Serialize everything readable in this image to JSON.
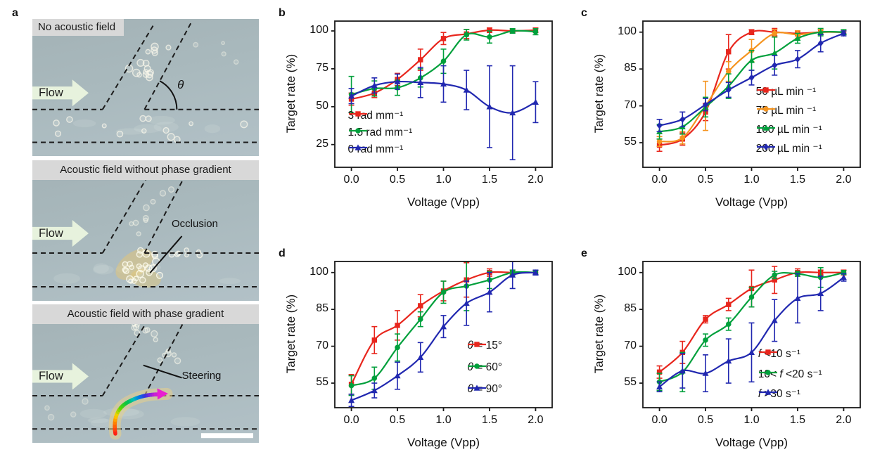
{
  "figure": {
    "panel_labels": {
      "a": "a",
      "b": "b",
      "c": "c",
      "d": "d",
      "e": "e"
    }
  },
  "panel_a": {
    "micrographs": [
      {
        "caption": "No acoustic field",
        "flow_label": "Flow",
        "angle_label": "θ"
      },
      {
        "caption": "Acoustic field without phase gradient",
        "flow_label": "Flow",
        "annotation": "Occlusion"
      },
      {
        "caption": "Acoustic field with phase gradient",
        "flow_label": "Flow",
        "annotation": "Steering"
      }
    ]
  },
  "chart_data": [
    {
      "panel": "b",
      "type": "line",
      "title": "",
      "xlabel": "Voltage (Vpp)",
      "ylabel": "Target rate (%)",
      "x": [
        0,
        0.25,
        0.5,
        0.75,
        1,
        1.25,
        1.5,
        1.75,
        2
      ],
      "xticks": {
        "values": [
          0,
          0.5,
          1,
          1.5,
          2
        ],
        "labels": [
          "0.0",
          "0.5",
          "1.0",
          "1.5",
          "2.0"
        ]
      },
      "yticks": {
        "values": [
          25,
          50,
          75,
          100
        ],
        "labels": [
          "25",
          "50",
          "75",
          "100"
        ]
      },
      "xlim": [
        -0.18,
        2.18
      ],
      "ylim": [
        10,
        106.5
      ],
      "grid": false,
      "legend_position": "inside lower-left",
      "series": [
        {
          "name": "3 rad mm⁻¹",
          "color": "#e8261d",
          "marker": "square",
          "values": [
            55,
            59,
            68,
            81,
            95,
            98,
            100.5,
            100,
            100.5
          ],
          "err": [
            4,
            3,
            4,
            7,
            4,
            3,
            1.5,
            1,
            1.5
          ]
        },
        {
          "name": "1.5 rad mm⁻¹",
          "color": "#00a03c",
          "marker": "circle",
          "values": [
            58,
            62,
            62.5,
            69,
            80,
            97.5,
            96,
            100,
            99.5
          ],
          "err": [
            12,
            5,
            5,
            6,
            8,
            3.5,
            4,
            1.5,
            2
          ]
        },
        {
          "name": "0 rad mm⁻¹",
          "color": "#2128b0",
          "marker": "triangle",
          "values": [
            57,
            64,
            66.5,
            66,
            65,
            61,
            50,
            46,
            53
          ],
          "err": [
            5,
            5,
            5,
            10,
            12,
            13,
            27,
            31,
            13.5
          ]
        }
      ]
    },
    {
      "panel": "c",
      "type": "line",
      "title": "",
      "xlabel": "Voltage (Vpp)",
      "ylabel": "Target rate (%)",
      "x": [
        0,
        0.25,
        0.5,
        0.75,
        1,
        1.25,
        1.5,
        1.75,
        2
      ],
      "xticks": {
        "values": [
          0,
          0.5,
          1,
          1.5,
          2
        ],
        "labels": [
          "0.0",
          "0.5",
          "1.0",
          "1.5",
          "2.0"
        ]
      },
      "yticks": {
        "values": [
          55,
          70,
          85,
          100
        ],
        "labels": [
          "55",
          "70",
          "85",
          "100"
        ]
      },
      "xlim": [
        -0.18,
        2.18
      ],
      "ylim": [
        45,
        104.5
      ],
      "grid": false,
      "legend_position": "inside lower-right",
      "series": [
        {
          "name": "50 µL min ⁻¹",
          "color": "#e8261d",
          "marker": "square",
          "values": [
            54,
            56.5,
            67.5,
            92,
            100,
            100,
            99.5,
            100,
            100
          ],
          "err": [
            2.5,
            2.5,
            3.5,
            7,
            1,
            1.5,
            1,
            1,
            0.8
          ]
        },
        {
          "name": "75 µL min ⁻¹",
          "color": "#f5941f",
          "marker": "circle",
          "values": [
            55.5,
            57,
            70,
            84,
            92.5,
            99.5,
            99,
            100,
            100
          ],
          "err": [
            2,
            2.5,
            10,
            4,
            4.5,
            1.5,
            1.5,
            1,
            0.8
          ]
        },
        {
          "name": "100 µL min ⁻¹",
          "color": "#00a03c",
          "marker": "triangle",
          "values": [
            59.5,
            61.5,
            69.5,
            78,
            88.5,
            91.5,
            97.5,
            100,
            100
          ],
          "err": [
            3,
            3,
            4,
            5,
            4,
            6.5,
            2,
            1.5,
            1
          ]
        },
        {
          "name": "200 µL min ⁻¹",
          "color": "#2128b0",
          "marker": "diamond",
          "values": [
            62,
            64.5,
            70.5,
            76.5,
            81.5,
            86.5,
            89,
            95.5,
            99.5
          ],
          "err": [
            2.5,
            3,
            2.5,
            3,
            3,
            4,
            3.5,
            3.5,
            1
          ]
        }
      ]
    },
    {
      "panel": "d",
      "type": "line",
      "title": "",
      "xlabel": "Voltage (Vpp)",
      "ylabel": "Target rate (%)",
      "x": [
        0,
        0.25,
        0.5,
        0.75,
        1,
        1.25,
        1.5,
        1.75,
        2
      ],
      "xticks": {
        "values": [
          0,
          0.5,
          1,
          1.5,
          2
        ],
        "labels": [
          "0.0",
          "0.5",
          "1.0",
          "1.5",
          "2.0"
        ]
      },
      "yticks": {
        "values": [
          55,
          70,
          85,
          100
        ],
        "labels": [
          "55",
          "70",
          "85",
          "100"
        ]
      },
      "xlim": [
        -0.18,
        2.18
      ],
      "ylim": [
        45,
        104.5
      ],
      "grid": false,
      "legend_position": "inside lower-right",
      "series": [
        {
          "name": "θ = 15°",
          "name_html": "<i>θ</i> = 15°",
          "color": "#e8261d",
          "marker": "square",
          "values": [
            54.5,
            72.5,
            78.5,
            86.5,
            92.5,
            97,
            100,
            100,
            100
          ],
          "err": [
            4,
            5.5,
            6,
            4.5,
            4,
            7,
            1.5,
            1,
            0.8
          ]
        },
        {
          "name": "θ = 60°",
          "name_html": "<i>θ</i> = 60°",
          "color": "#00a03c",
          "marker": "circle",
          "values": [
            54,
            57,
            69.5,
            81,
            92,
            94.5,
            97,
            100,
            100
          ],
          "err": [
            4,
            4.5,
            5.5,
            3,
            4.5,
            10,
            3.5,
            1,
            0.8
          ]
        },
        {
          "name": "θ = 90°",
          "name_html": "<i>θ</i> = 90°",
          "color": "#2128b0",
          "marker": "triangle",
          "values": [
            48,
            52,
            58,
            65.5,
            78,
            87.5,
            92,
            99,
            100
          ],
          "err": [
            2.5,
            3,
            5.5,
            6,
            4.5,
            9,
            8,
            5.5,
            1
          ]
        }
      ]
    },
    {
      "panel": "e",
      "type": "line",
      "title": "",
      "xlabel": "Voltage (Vpp)",
      "ylabel": "Target rate (%)",
      "x": [
        0,
        0.25,
        0.5,
        0.75,
        1,
        1.25,
        1.5,
        1.75,
        2
      ],
      "xticks": {
        "values": [
          0,
          0.5,
          1,
          1.5,
          2
        ],
        "labels": [
          "0.0",
          "0.5",
          "1.0",
          "1.5",
          "2.0"
        ]
      },
      "yticks": {
        "values": [
          55,
          70,
          85,
          100
        ],
        "labels": [
          "55",
          "70",
          "85",
          "100"
        ]
      },
      "xlim": [
        -0.18,
        2.18
      ],
      "ylim": [
        45,
        104.5
      ],
      "grid": false,
      "legend_position": "inside lower-right",
      "series": [
        {
          "name": "f <10 s⁻¹",
          "name_html": "<i>f</i> &lt;10 s⁻¹",
          "color": "#e8261d",
          "marker": "square",
          "values": [
            59.5,
            67.5,
            81,
            87,
            93.5,
            97,
            100,
            100,
            100
          ],
          "err": [
            2.5,
            4.5,
            1.5,
            2.5,
            7.5,
            5.5,
            1.5,
            1,
            1
          ]
        },
        {
          "name": "10< f <20 s⁻¹",
          "name_html": "10&lt; <i>f</i> &lt;20 s⁻¹",
          "color": "#00a03c",
          "marker": "circle",
          "values": [
            55.5,
            59.5,
            72.5,
            79,
            90,
            99,
            99.5,
            98,
            100
          ],
          "err": [
            3.5,
            8,
            2.5,
            2.5,
            4,
            1.5,
            1,
            4,
            0.8
          ]
        },
        {
          "name": "f >30 s⁻¹",
          "name_html": "<i>f</i> &gt;30 s⁻¹",
          "color": "#2128b0",
          "marker": "triangle",
          "values": [
            53.5,
            60,
            59,
            64,
            67.5,
            80.5,
            89.5,
            91.5,
            98
          ],
          "err": [
            2,
            7,
            7.5,
            9,
            12,
            8.5,
            10,
            7,
            1.5
          ]
        }
      ]
    }
  ]
}
